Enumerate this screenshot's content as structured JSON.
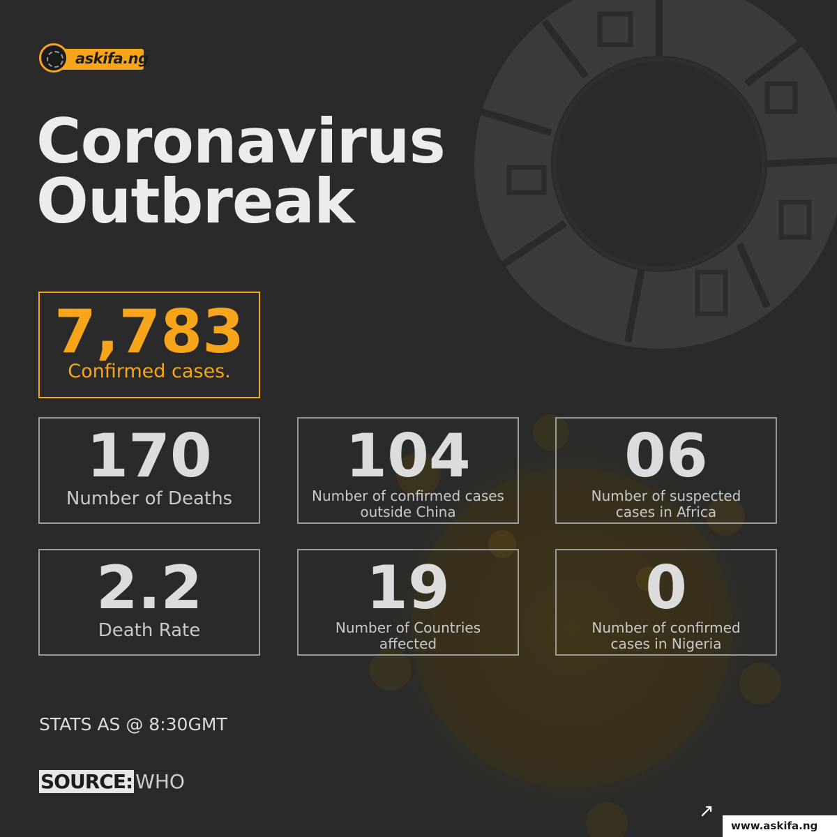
{
  "logo": {
    "brand": "askifa.ng"
  },
  "title": {
    "line1": "Coronavirus",
    "line2": "Outbreak"
  },
  "stats_boxes": {
    "confirmed": {
      "value": "7,783",
      "label": "Confirmed cases."
    },
    "deaths": {
      "value": "170",
      "label": "Number of Deaths"
    },
    "outside_china": {
      "value": "104",
      "label_line1": "Number of confirmed cases",
      "label_line2": "outside China"
    },
    "suspected_africa": {
      "value": "06",
      "label_line1": "Number of suspected",
      "label_line2": "cases in Africa"
    },
    "death_rate": {
      "value": "2.2",
      "label": "Death Rate"
    },
    "countries": {
      "value": "19",
      "label_line1": "Number of Countries",
      "label_line2": "affected"
    },
    "nigeria": {
      "value": "0",
      "label_line1": "Number of confirmed",
      "label_line2": "cases in Nigeria"
    }
  },
  "footer": {
    "stats_time": "STATS AS @ 8:30GMT",
    "source_label": "SOURCE:",
    "source_value": "WHO",
    "arrow": "↗",
    "url": "www.askifa.ng"
  },
  "colors": {
    "accent": "#f7a51a",
    "background": "#2a2a2a"
  }
}
